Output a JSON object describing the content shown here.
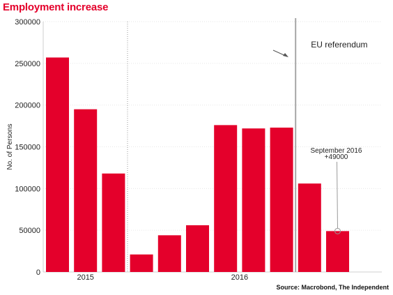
{
  "title": "Employment increase",
  "source": "Source: Macrobond, The Independent",
  "colors": {
    "bar": "#e4002b",
    "title": "#e4002b",
    "reference_line": "#a6a6a6",
    "grid": "#e6e6e6"
  },
  "chart_data": {
    "type": "bar",
    "title": "Employment increase",
    "xlabel": "",
    "ylabel": "No. of Persons",
    "ylim": [
      0,
      300000
    ],
    "yticks": [
      0,
      50000,
      100000,
      150000,
      200000,
      250000,
      300000
    ],
    "grid": true,
    "values": [
      257000,
      195000,
      118000,
      21000,
      44000,
      56000,
      176000,
      172000,
      173000,
      106000,
      49000
    ],
    "x_group_labels": [
      {
        "label": "2015",
        "first_index": 0,
        "last_index": 2
      },
      {
        "label": "2016",
        "first_index": 3,
        "last_index": 10
      }
    ],
    "year_separator_after_index": 2,
    "reference_line": {
      "after_index": 8,
      "label": "EU referendum"
    },
    "annotation": {
      "index": 10,
      "lines": [
        "September 2016",
        "+49000"
      ]
    }
  }
}
